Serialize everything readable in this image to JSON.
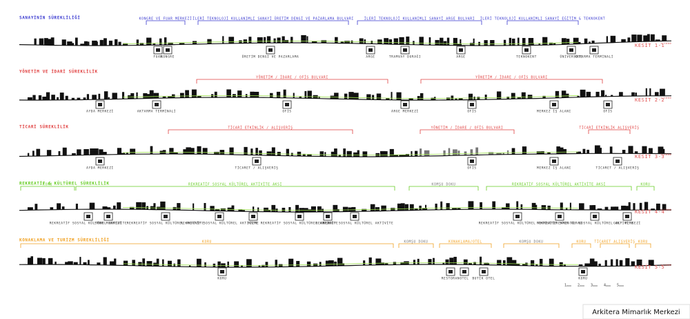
{
  "sections": [
    {
      "title": "SANAYİNİN SÜREKLİLİĞİ",
      "section": "KESİT 1-1",
      "scale": "1/1000",
      "brackets": [
        "KONGRE VE FUAR MERKEZİ",
        "İLERİ TEKNOLOJİ KULLANIMLI SANAYİ ÜRETİM DENGİ VE PAZARLAMA BULVARI",
        "İLERİ TEKNOLOJİ KULLANIMLI SANAYİ ARGE BULVARI",
        "İLERİ TEKNOLOJİ KULLANIMLI SANAYİ EĞİTİM & TEKNOKENT"
      ],
      "icons": [
        "FUAR",
        "KONGRE",
        "ÜRETİM DENGİ VE PAZARLAMA",
        "ARGE",
        "TRAMVAY DURAĞI",
        "ARGE",
        "TEKNOKENT",
        "ÜNİVERSİTE",
        "AKTARMA TERMİNALİ"
      ]
    },
    {
      "title": "YÖNETİM VE İDARİ SÜREKLİLİK",
      "section": "KESİT 2-2",
      "scale": "1/1000",
      "brackets": [
        "YÖNETİM / İDARE / OFİS BULVARI",
        "YÖNETİM / İDARE / OFİS BULVARI"
      ],
      "icons": [
        "AYDA MERKEZİ",
        "AKTARMA TERMİNALİ",
        "OFİS",
        "ARGE MERKEZİ",
        "OFİS",
        "MERKEZ İŞ ALANI",
        "OFİS"
      ]
    },
    {
      "title": "TİCARİ SÜREKLİLİK",
      "section": "KESİT 3-3",
      "scale": "1/1000",
      "brackets": [
        "TİCARİ ETKİNLİK / ALIŞVERİŞ",
        "YÖNETİM / İDARE / OFİS BULVARI",
        "TİCARİ ETKİNLİK ALIŞVERİŞ"
      ],
      "icons": [
        "AYDA MERKEZİ",
        "TİCARET / ALIŞVERİŞ",
        "OFİS",
        "MERKEZ İŞ ALANI",
        "TİCARET / ALIŞVERİŞ"
      ]
    },
    {
      "title": "REKREATİF & KÜLTÜREL SÜREKLİLİK",
      "section": "KESİT 4-4",
      "scale": "1/1000",
      "brackets": [
        "KORU",
        "REKREATİF SOSYAL KÜLTÜREL AKTİVİTE AKSI",
        "KOMŞU DOKU",
        "REKREATİF SOSYAL KÜLTÜREL AKTİVİTE AKSI",
        "KORU"
      ],
      "icons": [
        "REKREATİF SOSYAL KÜLTÜREL AKTİVİTE",
        "SPOR MERKEZİ",
        "REKREATİF SOSYAL KÜLTÜREL AKTİVİTE",
        "REKREATİF SOSYAL KÜLTÜREL AKTİVİTE",
        "YÜZME",
        "REKREATİF SOSYAL KÜLTÜREL AKTİVİTE",
        "SERA",
        "REKREATİF SOSYAL KÜLTÜREL AKTİVİTE",
        "REKREATİF SOSYAL KÜLTÜREL AKTİVİTE",
        "REKREATİF SPOR ALANI",
        "REKREATİF SOSYAL KÜLTÜREL AKTİVİTE",
        "GOLF MERKEZİ"
      ]
    },
    {
      "title": "KONAKLAMA VE TURİZM SÜREKLİLİĞİ",
      "section": "KESİT 5-5",
      "scale": "1/1000",
      "brackets": [
        "KORU",
        "KOMŞU DOKU",
        "KONAKLAMA/OTEL",
        "KOMŞU DOKU",
        "KORU",
        "TİCARET ALIŞVERİŞ",
        "KORU"
      ],
      "icons": [
        "KORU",
        "RESTORAN",
        "OTEL",
        "BUTİK OTEL",
        "KORU"
      ]
    }
  ],
  "numbers": [
    "1",
    "2",
    "3",
    "4",
    "5"
  ],
  "footer": "Arkitera Mimarlık Merkezi"
}
